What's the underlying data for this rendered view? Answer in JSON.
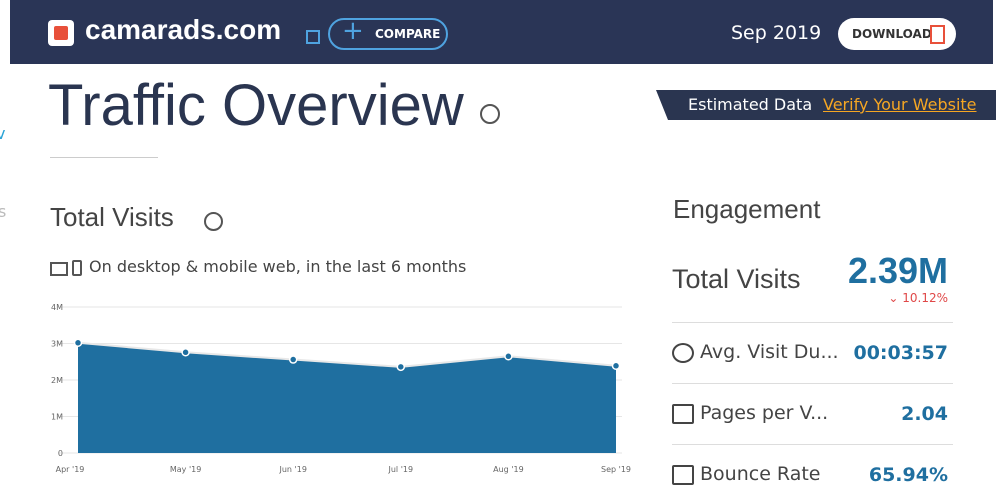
{
  "header": {
    "site": "camarads.com",
    "compare": "COMPARE",
    "date": "Sep 2019",
    "download": "DOWNLOAD"
  },
  "edge_fragments": [
    "v",
    "s"
  ],
  "page_title": "Traffic Overview",
  "banner": {
    "label": "Estimated Data",
    "link": "Verify Your Website"
  },
  "visits": {
    "title": "Total Visits",
    "subtitle": "On desktop & mobile web, in the last 6 months"
  },
  "chart_data": {
    "type": "area",
    "categories": [
      "Apr '19",
      "May '19",
      "Jun '19",
      "Jul '19",
      "Aug '19",
      "Sep '19"
    ],
    "values": [
      3020000,
      2760000,
      2560000,
      2360000,
      2650000,
      2390000
    ],
    "color": "#1f6fa0",
    "ylim": [
      0,
      4000000
    ],
    "yticks": [
      0,
      {
        "value": 1000000,
        "label": "1M"
      },
      {
        "value": 2000000,
        "label": "2M"
      },
      {
        "value": 3000000,
        "label": "3M"
      },
      {
        "value": 4000000,
        "label": "4M"
      }
    ],
    "grid": true
  },
  "engagement": {
    "title": "Engagement",
    "total_label": "Total Visits",
    "total_value": "2.39M",
    "change": "10.12%",
    "rows": [
      [
        "Avg. Visit Du...",
        "00:03:57"
      ],
      [
        "Pages per V...",
        "2.04"
      ],
      [
        "Bounce Rate",
        "65.94%"
      ]
    ]
  }
}
